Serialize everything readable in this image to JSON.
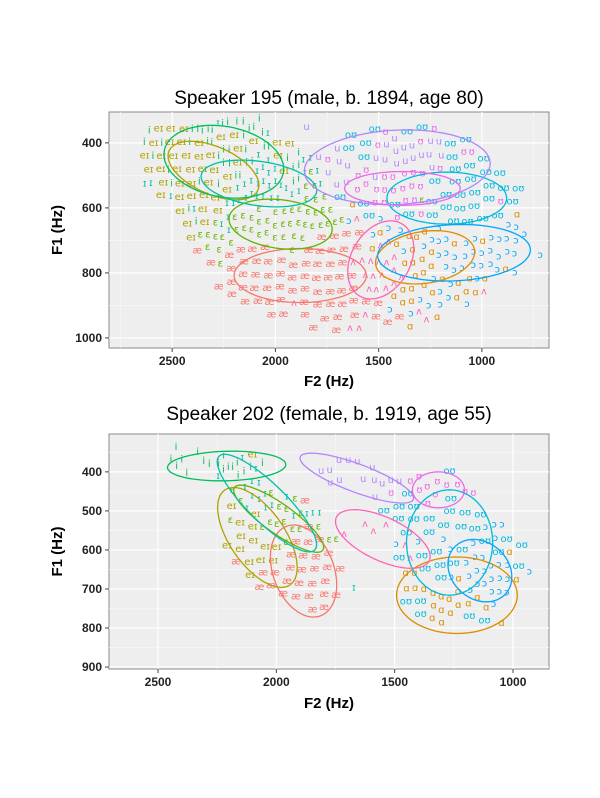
{
  "chart_data": [
    {
      "type": "scatter",
      "title": "Speaker 195 (male, b. 1894, age 80)",
      "xlabel": "F2 (Hz)",
      "ylabel": "F1 (Hz)",
      "xlim": [
        2806,
        675
      ],
      "ylim": [
        305,
        1031
      ],
      "x_reversed": true,
      "y_reversed": true,
      "xticks": [
        2500,
        2000,
        1500,
        1000
      ],
      "yticks": [
        400,
        600,
        800,
        1000
      ],
      "grid": true,
      "legend": "none",
      "vowels": [
        {
          "label": "æ",
          "color": "#F8766D",
          "mean": [
            1880,
            808
          ],
          "spread": [
            320,
            83
          ],
          "r": 0.0,
          "n": 70
        },
        {
          "label": "ɑ",
          "color": "#DB8E00",
          "mean": [
            1275,
            752
          ],
          "spread": [
            240,
            82
          ],
          "r": 0.2,
          "n": 35
        },
        {
          "label": "eɪ",
          "color": "#AEA200",
          "mean": [
            2300,
            485
          ],
          "spread": [
            220,
            90
          ],
          "r": -0.5,
          "n": 45
        },
        {
          "label": "ɛ",
          "color": "#64B200",
          "mean": [
            1975,
            650
          ],
          "spread": [
            250,
            77
          ],
          "r": -0.2,
          "n": 50
        },
        {
          "label": "i",
          "color": "#00BD5C",
          "mean": [
            2250,
            458
          ],
          "spread": [
            290,
            112
          ],
          "r": -0.2,
          "n": 45
        },
        {
          "label": "ɪ",
          "color": "#00C1A7",
          "mean": [
            2080,
            525
          ],
          "spread": [
            280,
            72
          ],
          "r": -0.3,
          "n": 40
        },
        {
          "label": "oʊ",
          "color": "#00BADE",
          "mean": [
            1170,
            570
          ],
          "spread": [
            290,
            80
          ],
          "r": 0.0,
          "n": 40
        },
        {
          "label": "ɔ",
          "color": "#00A6FF",
          "mean": [
            1135,
            738
          ],
          "spread": [
            370,
            87
          ],
          "r": 0.1,
          "n": 50
        },
        {
          "label": "u",
          "color": "#B385FF",
          "mean": [
            1410,
            475
          ],
          "spread": [
            450,
            115
          ],
          "r": 0.1,
          "n": 25
        },
        {
          "label": "ʊ",
          "color": "#EF67EB",
          "mean": [
            1385,
            540
          ],
          "spread": [
            280,
            52
          ],
          "r": 0.0,
          "n": 30
        },
        {
          "label": "ʌ",
          "color": "#FF63B6",
          "mean": [
            1490,
            760
          ],
          "spread": [
            160,
            120
          ],
          "r": 0.3,
          "n": 25
        }
      ]
    },
    {
      "type": "scatter",
      "title": "Speaker 202 (female, b. 1919, age 55)",
      "xlabel": "F2 (Hz)",
      "ylabel": "F1 (Hz)",
      "xlim": [
        2707,
        848
      ],
      "ylim": [
        303,
        905
      ],
      "x_reversed": true,
      "y_reversed": true,
      "xticks": [
        2500,
        2000,
        1500,
        1000
      ],
      "yticks": [
        400,
        500,
        600,
        700,
        800,
        900
      ],
      "grid": true,
      "legend": "none",
      "vowels": [
        {
          "label": "æ",
          "color": "#F8766D",
          "mean": [
            1885,
            654
          ],
          "spread": [
            140,
            118
          ],
          "r": -0.3,
          "n": 30
        },
        {
          "label": "ɑ",
          "color": "#DB8E00",
          "mean": [
            1237,
            716
          ],
          "spread": [
            255,
            98
          ],
          "r": 0.0,
          "n": 22
        },
        {
          "label": "eɪ",
          "color": "#AEA200",
          "mean": [
            2080,
            568
          ],
          "spread": [
            168,
            128
          ],
          "r": -0.6,
          "n": 15
        },
        {
          "label": "ɛ",
          "color": "#64B200",
          "mean": [
            1990,
            520
          ],
          "spread": [
            190,
            86
          ],
          "r": -0.85,
          "n": 18
        },
        {
          "label": "i",
          "color": "#00BD5C",
          "mean": [
            2210,
            385
          ],
          "spread": [
            250,
            38
          ],
          "r": 0.1,
          "n": 18
        },
        {
          "label": "ɪ",
          "color": "#00C1A7",
          "mean": [
            2040,
            480
          ],
          "spread": [
            210,
            125
          ],
          "r": -0.85,
          "n": 18
        },
        {
          "label": "oʊ",
          "color": "#00BADE",
          "mean": [
            1268,
            581
          ],
          "spread": [
            182,
            135
          ],
          "r": 0.0,
          "n": 35
        },
        {
          "label": "ɔ",
          "color": "#00A6FF",
          "mean": [
            1140,
            653
          ],
          "spread": [
            135,
            80
          ],
          "r": -0.2,
          "n": 30
        },
        {
          "label": "u",
          "color": "#B385FF",
          "mean": [
            1660,
            416
          ],
          "spread": [
            240,
            64
          ],
          "r": -0.8,
          "n": 14
        },
        {
          "label": "ʊ",
          "color": "#EF67EB",
          "mean": [
            1315,
            446
          ],
          "spread": [
            110,
            46
          ],
          "r": 0.0,
          "n": 12
        },
        {
          "label": "ʌ",
          "color": "#FF63B6",
          "mean": [
            1550,
            572
          ],
          "spread": [
            200,
            75
          ],
          "r": -0.6,
          "n": 6
        }
      ]
    }
  ]
}
